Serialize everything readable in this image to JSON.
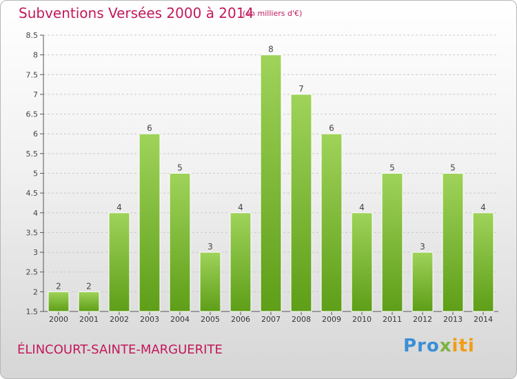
{
  "header": {
    "title": "Subventions Versées 2000 à 2014",
    "unit_note": "(en milliers d'€)"
  },
  "footer": {
    "commune": "ÉLINCOURT-SAINTE-MARGUERITE",
    "logo_part1": "Pro",
    "logo_part2": "x",
    "logo_part3": "iti"
  },
  "colors": {
    "bar_top": "#9fd35a",
    "bar_bottom": "#5e9e18",
    "text_accent": "#c2185b"
  },
  "chart_data": {
    "type": "bar",
    "title": "Subventions Versées 2000 à 2014",
    "subtitle": "(en milliers d'€)",
    "xlabel": "",
    "ylabel": "",
    "categories": [
      "2000",
      "2001",
      "2002",
      "2003",
      "2004",
      "2005",
      "2006",
      "2007",
      "2008",
      "2009",
      "2010",
      "2011",
      "2012",
      "2013",
      "2014"
    ],
    "values": [
      2,
      2,
      4,
      6,
      5,
      3,
      4,
      8,
      7,
      6,
      4,
      5,
      3,
      5,
      4
    ],
    "ylim": [
      1.5,
      8.5
    ],
    "yticks": [
      "1.5",
      "2",
      "2.5",
      "3",
      "3.5",
      "4",
      "4.5",
      "5",
      "5.5",
      "6",
      "6.5",
      "7",
      "7.5",
      "8",
      "8.5"
    ],
    "grid": true,
    "legend": "none"
  }
}
